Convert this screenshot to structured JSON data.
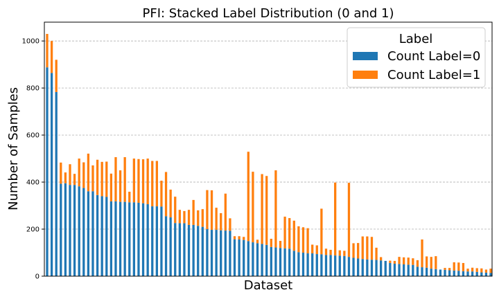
{
  "chart_data": {
    "type": "bar",
    "stacked": true,
    "title": "PFI: Stacked Label Distribution (0 and 1)",
    "xlabel": "Dataset",
    "ylabel": "Number of Samples",
    "ylim": [
      0,
      1080
    ],
    "yticks": [
      0,
      200,
      400,
      600,
      800,
      1000
    ],
    "grid": "y-dashed",
    "legend": {
      "title": "Label",
      "placement": "top-right"
    },
    "series": [
      {
        "name": "Count Label=0",
        "color": "#1f77b4",
        "values": [
          888,
          864,
          783,
          393,
          395,
          388,
          388,
          382,
          375,
          361,
          361,
          345,
          340,
          337,
          318,
          318,
          316,
          316,
          314,
          314,
          312,
          310,
          306,
          297,
          297,
          296,
          255,
          250,
          226,
          225,
          225,
          218,
          218,
          214,
          210,
          200,
          197,
          197,
          195,
          194,
          193,
          157,
          156,
          154,
          149,
          144,
          140,
          137,
          133,
          124,
          122,
          120,
          118,
          117,
          108,
          102,
          100,
          97,
          97,
          94,
          93,
          90,
          90,
          88,
          87,
          86,
          82,
          78,
          75,
          73,
          71,
          70,
          69,
          67,
          65,
          56,
          53,
          52,
          50,
          49,
          48,
          40,
          38,
          36,
          32,
          30,
          28,
          27,
          25,
          24,
          23,
          21,
          20,
          20,
          18,
          16,
          15,
          14
        ]
      },
      {
        "name": "Count Label=1",
        "color": "#ff7f0e",
        "values": [
          142,
          136,
          137,
          90,
          46,
          88,
          47,
          118,
          109,
          160,
          110,
          150,
          146,
          150,
          118,
          188,
          134,
          190,
          45,
          186,
          186,
          187,
          194,
          193,
          193,
          110,
          188,
          118,
          112,
          57,
          52,
          64,
          106,
          66,
          75,
          166,
          168,
          94,
          73,
          157,
          53,
          13,
          14,
          13,
          380,
          300,
          15,
          297,
          293,
          35,
          328,
          30,
          135,
          130,
          128,
          110,
          108,
          107,
          37,
          37,
          194,
          27,
          22,
          310,
          23,
          22,
          315,
          62,
          66,
          96,
          98,
          97,
          52,
          14,
          0,
          10,
          12,
          30,
          30,
          30,
          28,
          28,
          118,
          48,
          50,
          55,
          0,
          8,
          10,
          35,
          35,
          35,
          12,
          16,
          16,
          17,
          13,
          18
        ]
      }
    ]
  }
}
